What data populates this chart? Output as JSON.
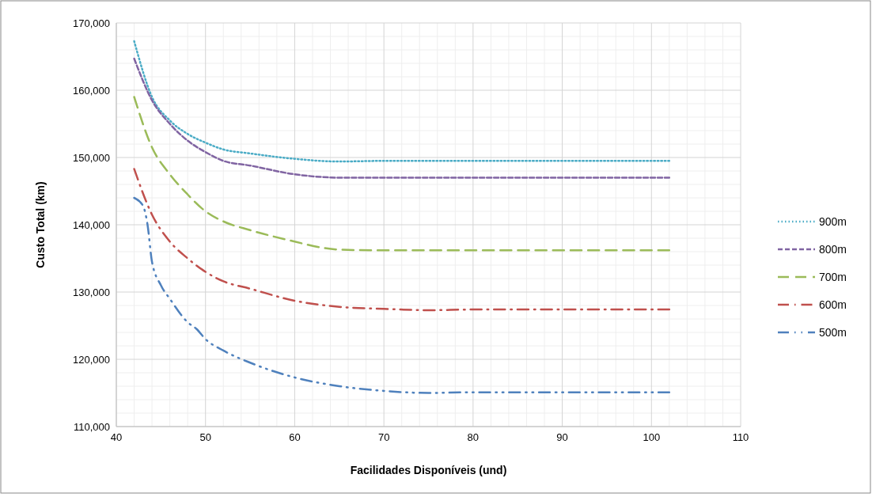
{
  "chart_data": {
    "type": "line",
    "xlabel": "Facilidades  Disponíveis (und)",
    "ylabel": "Custo Total (km)",
    "xlim": [
      40,
      110
    ],
    "xticks": [
      40,
      50,
      60,
      70,
      80,
      90,
      100,
      110
    ],
    "ylim": [
      110000,
      170000
    ],
    "yticks": [
      {
        "value": 110000,
        "label": "110,000"
      },
      {
        "value": 120000,
        "label": "120,000"
      },
      {
        "value": 130000,
        "label": "130,000"
      },
      {
        "value": 140000,
        "label": "140,000"
      },
      {
        "value": 150000,
        "label": "150,000"
      },
      {
        "value": 160000,
        "label": "160,000"
      },
      {
        "value": 170000,
        "label": "170,000"
      }
    ],
    "grid": true,
    "legend": "right",
    "marker": "none",
    "series": [
      {
        "name": "900m",
        "color": "#4bacc6",
        "line_style": "dotted",
        "x": [
          42,
          44,
          46,
          48,
          50,
          52,
          55,
          60,
          65,
          70,
          80,
          90,
          102
        ],
        "values": [
          167300,
          159000,
          155500,
          153500,
          152200,
          151200,
          150600,
          149800,
          149400,
          149500,
          149500,
          149500,
          149500
        ]
      },
      {
        "name": "800m",
        "color": "#8064a2",
        "line_style": "dashed",
        "x": [
          42,
          44,
          46,
          48,
          50,
          52,
          55,
          60,
          63,
          65,
          70,
          80,
          90,
          102
        ],
        "values": [
          164700,
          158500,
          155000,
          152500,
          150800,
          149500,
          148800,
          147500,
          147100,
          147000,
          147000,
          147000,
          147000,
          147000
        ]
      },
      {
        "name": "700m",
        "color": "#9bbb59",
        "line_style": "longdash",
        "x": [
          42,
          44,
          46,
          48,
          50,
          52,
          55,
          60,
          63,
          65,
          70,
          80,
          90,
          102
        ],
        "values": [
          159000,
          151500,
          147500,
          144500,
          142000,
          140500,
          139200,
          137500,
          136600,
          136300,
          136200,
          136200,
          136200,
          136200
        ]
      },
      {
        "name": "600m",
        "color": "#c0504d",
        "line_style": "dashdot",
        "x": [
          42,
          44,
          46,
          48,
          50,
          52,
          55,
          60,
          65,
          70,
          75,
          80,
          90,
          102
        ],
        "values": [
          148300,
          141500,
          137500,
          135000,
          133000,
          131600,
          130500,
          128700,
          127800,
          127500,
          127300,
          127400,
          127400,
          127400
        ]
      },
      {
        "name": "500m",
        "color": "#4f81bd",
        "line_style": "dashdotdot",
        "x": [
          42,
          43,
          43.5,
          44,
          45,
          46,
          48,
          49,
          50,
          52,
          55,
          60,
          65,
          70,
          75,
          80,
          90,
          102
        ],
        "values": [
          144000,
          142800,
          140000,
          134500,
          131000,
          129000,
          125500,
          124500,
          123000,
          121300,
          119500,
          117300,
          116000,
          115300,
          115000,
          115100,
          115100,
          115100
        ]
      }
    ]
  }
}
